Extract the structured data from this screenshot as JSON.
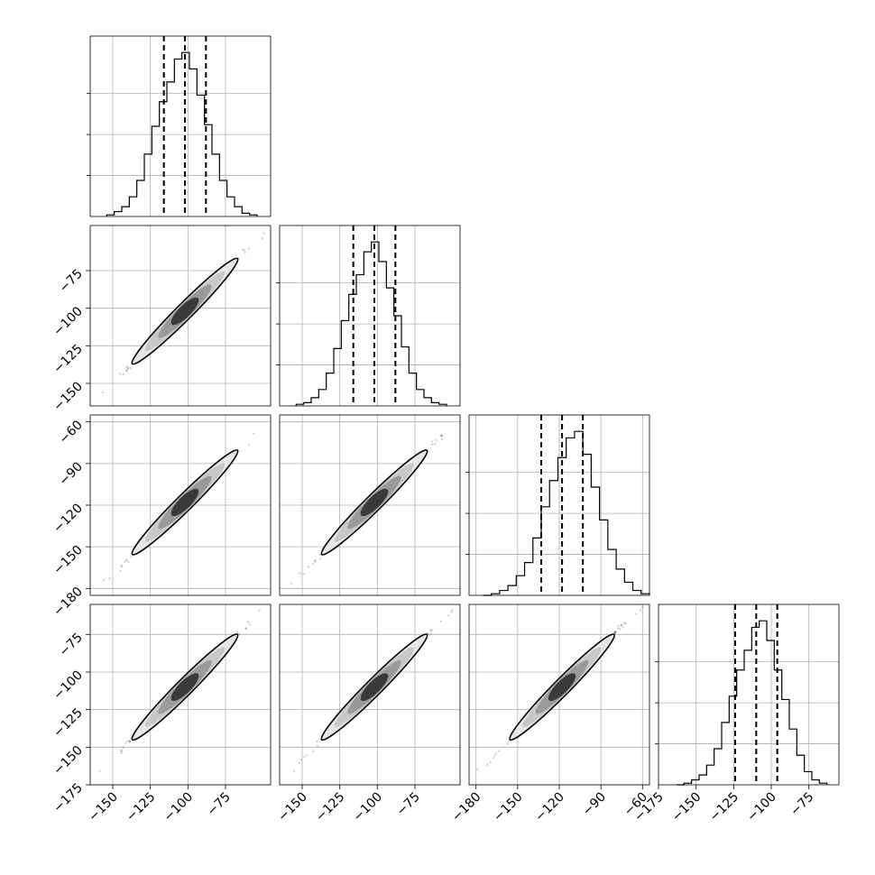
{
  "chart_data": {
    "type": "corner",
    "n_params": 4,
    "grid": true,
    "params": [
      {
        "axis_range": [
          -165,
          -45
        ],
        "ticks": [
          -150,
          -125,
          -100,
          -75
        ],
        "tick_labels": [
          "−150",
          "−125",
          "−100",
          "−75"
        ],
        "center": -102,
        "q16": -116,
        "q84": -88,
        "sd": 14
      },
      {
        "axis_range": [
          -165,
          -45
        ],
        "ticks": [
          -150,
          -125,
          -100,
          -75
        ],
        "tick_labels": [
          "−150",
          "−125",
          "−100",
          "−75"
        ],
        "center": -102,
        "q16": -116,
        "q84": -88,
        "sd": 14
      },
      {
        "axis_range": [
          -185,
          -55
        ],
        "ticks": [
          -180,
          -150,
          -120,
          -90,
          -60
        ],
        "tick_labels": [
          "−180",
          "−150",
          "−120",
          "−90",
          "−60"
        ],
        "center": -118,
        "q16": -133,
        "q84": -103,
        "sd": 15
      },
      {
        "axis_range": [
          -175,
          -55
        ],
        "ticks": [
          -175,
          -150,
          -125,
          -100,
          -75
        ],
        "tick_labels": [
          "−175",
          "−150",
          "−125",
          "−100",
          "−75"
        ],
        "center": -110,
        "q16": -124,
        "q84": -96,
        "sd": 14
      }
    ],
    "histograms": [
      {
        "bin_edges": [
          -154,
          -149,
          -144,
          -139,
          -134,
          -129,
          -124,
          -119,
          -114,
          -109,
          -104,
          -99,
          -94,
          -89,
          -84,
          -79,
          -74,
          -69,
          -64,
          -59,
          -54
        ],
        "counts": [
          1,
          3,
          6,
          12,
          22,
          38,
          55,
          70,
          82,
          96,
          100,
          90,
          74,
          56,
          38,
          22,
          12,
          6,
          2,
          1
        ]
      },
      {
        "bin_edges": [
          -154,
          -149,
          -144,
          -139,
          -134,
          -129,
          -124,
          -119,
          -114,
          -109,
          -104,
          -99,
          -94,
          -89,
          -84,
          -79,
          -74,
          -69,
          -64,
          -59,
          -54
        ],
        "counts": [
          1,
          2,
          5,
          10,
          20,
          35,
          52,
          68,
          80,
          94,
          100,
          88,
          72,
          55,
          36,
          20,
          10,
          5,
          2,
          1
        ]
      },
      {
        "bin_edges": [
          -175,
          -169,
          -163,
          -157,
          -151,
          -145,
          -139,
          -133,
          -127,
          -121,
          -115,
          -109,
          -103,
          -97,
          -91,
          -85,
          -79,
          -73,
          -67,
          -61,
          -55
        ],
        "counts": [
          0,
          1,
          3,
          6,
          12,
          20,
          35,
          54,
          70,
          84,
          96,
          100,
          86,
          66,
          46,
          28,
          16,
          8,
          3,
          1
        ]
      },
      {
        "bin_edges": [
          -163,
          -158,
          -153,
          -148,
          -143,
          -138,
          -133,
          -128,
          -123,
          -118,
          -113,
          -108,
          -103,
          -98,
          -93,
          -88,
          -83,
          -78,
          -73,
          -68,
          -63
        ],
        "counts": [
          0,
          1,
          3,
          6,
          12,
          22,
          38,
          54,
          70,
          82,
          96,
          100,
          88,
          70,
          52,
          34,
          18,
          8,
          3,
          1
        ]
      }
    ],
    "correlation": 0.995,
    "scatter_extent_sigma": 3.8,
    "contour_levels_sigma": [
      0.5,
      1.0,
      1.5,
      2.0
    ]
  }
}
